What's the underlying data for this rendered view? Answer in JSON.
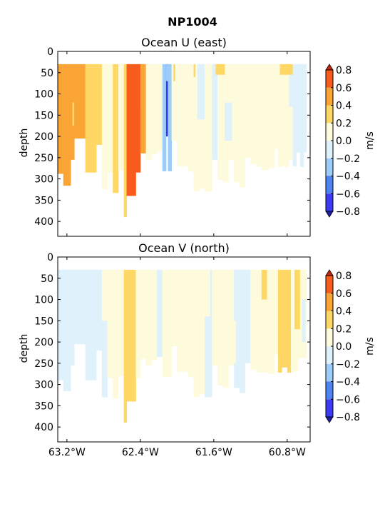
{
  "figure": {
    "title": "NP1004"
  },
  "colorbar": {
    "label": "m/s",
    "levels": [
      -0.8,
      -0.6,
      -0.4,
      -0.2,
      0.0,
      0.2,
      0.4,
      0.6,
      0.8
    ],
    "tick_labels": [
      "−0.8",
      "−0.6",
      "−0.4",
      "−0.2",
      "0.0",
      "0.2",
      "0.4",
      "0.6",
      "0.8"
    ],
    "colors": [
      "#3b3bf5",
      "#4c82f2",
      "#9ccdfa",
      "#dff1fb",
      "#fefbdd",
      "#fed765",
      "#f9a434",
      "#f75c1c"
    ],
    "under_color": "#1d1dab",
    "over_color": "#c2270b"
  },
  "chart_data": [
    {
      "type": "heatmap",
      "title": "Ocean U (east)",
      "xlabel": "",
      "ylabel": "depth",
      "xlim": [
        -63.3,
        -60.55
      ],
      "ylim": [
        435,
        0
      ],
      "yticks": [
        0,
        50,
        100,
        150,
        200,
        250,
        300,
        350,
        400
      ],
      "ytick_labels": [
        "0",
        "50",
        "100",
        "150",
        "200",
        "250",
        "300",
        "350",
        "400"
      ],
      "xticks": [
        -63.2,
        -62.4,
        -61.6,
        -60.8
      ],
      "xtick_labels": [
        "",
        "",
        "",
        ""
      ],
      "columns": [
        {
          "lon0": -63.3,
          "lon1": -63.24,
          "bottom": 288,
          "value": 0.45
        },
        {
          "lon0": -63.24,
          "lon1": -63.16,
          "bottom": 316,
          "value": 0.45
        },
        {
          "lon0": -63.16,
          "lon1": -63.12,
          "bottom": 255,
          "value": 0.45
        },
        {
          "lon0": -63.12,
          "lon1": -63.0,
          "bottom": 205,
          "value": 0.45
        },
        {
          "lon0": -63.0,
          "lon1": -62.88,
          "bottom": 285,
          "value": 0.3
        },
        {
          "lon0": -62.88,
          "lon1": -62.82,
          "bottom": 220,
          "value": 0.3
        },
        {
          "lon0": -62.82,
          "lon1": -62.76,
          "bottom": 325,
          "value": 0.1
        },
        {
          "lon0": -62.76,
          "lon1": -62.7,
          "bottom": 285,
          "value": 0.1
        },
        {
          "lon0": -62.7,
          "lon1": -62.64,
          "bottom": 333,
          "value": 0.3
        },
        {
          "lon0": -62.64,
          "lon1": -62.58,
          "bottom": 280,
          "value": 0.1
        },
        {
          "lon0": -62.58,
          "lon1": -62.55,
          "bottom": 390,
          "value": 0.3
        },
        {
          "lon0": -62.55,
          "lon1": -62.45,
          "bottom": 340,
          "value": 0.7
        },
        {
          "lon0": -62.45,
          "lon1": -62.4,
          "bottom": 285,
          "value": 0.7
        },
        {
          "lon0": -62.4,
          "lon1": -62.34,
          "bottom": 240,
          "value": 0.45
        },
        {
          "lon0": -62.34,
          "lon1": -62.28,
          "bottom": 255,
          "value": 0.1
        },
        {
          "lon0": -62.28,
          "lon1": -62.22,
          "bottom": 242,
          "value": 0.1
        },
        {
          "lon0": -62.22,
          "lon1": -62.16,
          "bottom": 235,
          "value": 0.1
        },
        {
          "lon0": -62.16,
          "lon1": -62.12,
          "bottom": 282,
          "value": -0.3
        },
        {
          "lon0": -62.12,
          "lon1": -62.1,
          "bottom": 200,
          "value": -0.7
        },
        {
          "lon0": -62.1,
          "lon1": -62.06,
          "bottom": 282,
          "value": -0.3
        },
        {
          "lon0": -62.06,
          "lon1": -62.0,
          "bottom": 210,
          "value": 0.1
        },
        {
          "lon0": -62.0,
          "lon1": -61.88,
          "bottom": 270,
          "value": 0.1
        },
        {
          "lon0": -61.88,
          "lon1": -61.82,
          "bottom": 283,
          "value": 0.1
        },
        {
          "lon0": -61.82,
          "lon1": -61.76,
          "bottom": 330,
          "value": 0.1
        },
        {
          "lon0": -61.76,
          "lon1": -61.7,
          "bottom": 323,
          "value": 0.1
        },
        {
          "lon0": -61.7,
          "lon1": -61.62,
          "bottom": 330,
          "value": 0.1
        },
        {
          "lon0": -61.62,
          "lon1": -61.56,
          "bottom": 255,
          "value": -0.1
        },
        {
          "lon0": -61.56,
          "lon1": -61.5,
          "bottom": 302,
          "value": 0.1
        },
        {
          "lon0": -61.5,
          "lon1": -61.44,
          "bottom": 308,
          "value": 0.1
        },
        {
          "lon0": -61.44,
          "lon1": -61.38,
          "bottom": 255,
          "value": 0.1
        },
        {
          "lon0": -61.38,
          "lon1": -61.32,
          "bottom": 308,
          "value": 0.1
        },
        {
          "lon0": -61.32,
          "lon1": -61.26,
          "bottom": 320,
          "value": 0.1
        },
        {
          "lon0": -61.26,
          "lon1": -61.2,
          "bottom": 250,
          "value": 0.1
        },
        {
          "lon0": -61.2,
          "lon1": -61.14,
          "bottom": 265,
          "value": 0.1
        },
        {
          "lon0": -61.14,
          "lon1": -61.08,
          "bottom": 272,
          "value": 0.1
        },
        {
          "lon0": -61.08,
          "lon1": -61.0,
          "bottom": 280,
          "value": 0.1
        },
        {
          "lon0": -61.0,
          "lon1": -60.94,
          "bottom": 275,
          "value": 0.1
        },
        {
          "lon0": -60.94,
          "lon1": -60.9,
          "bottom": 230,
          "value": 0.1
        },
        {
          "lon0": -60.9,
          "lon1": -60.86,
          "bottom": 272,
          "value": 0.1
        },
        {
          "lon0": -60.86,
          "lon1": -60.82,
          "bottom": 270,
          "value": 0.1
        },
        {
          "lon0": -60.82,
          "lon1": -60.78,
          "bottom": 272,
          "value": 0.1
        },
        {
          "lon0": -60.78,
          "lon1": -60.74,
          "bottom": 255,
          "value": 0.1
        },
        {
          "lon0": -60.74,
          "lon1": -60.7,
          "bottom": 270,
          "value": -0.1
        },
        {
          "lon0": -60.7,
          "lon1": -60.66,
          "bottom": 238,
          "value": -0.1
        },
        {
          "lon0": -60.66,
          "lon1": -60.62,
          "bottom": 272,
          "value": -0.1
        },
        {
          "lon0": -60.62,
          "lon1": -60.59,
          "bottom": 238,
          "value": -0.1
        }
      ],
      "patches": [
        {
          "lon0": -62.4,
          "lon1": -62.36,
          "top": 30,
          "bottom": 130,
          "value": 0.45
        },
        {
          "lon0": -63.14,
          "lon1": -63.12,
          "top": 120,
          "bottom": 175,
          "value": 0.3
        },
        {
          "lon0": -62.12,
          "lon1": -62.1,
          "top": 30,
          "bottom": 70,
          "value": -0.3
        },
        {
          "lon0": -62.04,
          "lon1": -62.02,
          "top": 30,
          "bottom": 70,
          "value": 0.3
        },
        {
          "lon0": -61.82,
          "lon1": -61.8,
          "top": 30,
          "bottom": 60,
          "value": 0.3
        },
        {
          "lon0": -61.78,
          "lon1": -61.7,
          "top": 30,
          "bottom": 160,
          "value": -0.1
        },
        {
          "lon0": -61.58,
          "lon1": -61.48,
          "top": 30,
          "bottom": 55,
          "value": 0.3
        },
        {
          "lon0": -61.48,
          "lon1": -61.4,
          "top": 120,
          "bottom": 210,
          "value": -0.1
        },
        {
          "lon0": -60.88,
          "lon1": -60.74,
          "top": 30,
          "bottom": 55,
          "value": 0.3
        },
        {
          "lon0": -60.78,
          "lon1": -60.74,
          "top": 55,
          "bottom": 130,
          "value": -0.1
        }
      ]
    },
    {
      "type": "heatmap",
      "title": "Ocean V (north)",
      "xlabel": "",
      "ylabel": "depth",
      "xlim": [
        -63.3,
        -60.55
      ],
      "ylim": [
        435,
        0
      ],
      "yticks": [
        0,
        50,
        100,
        150,
        200,
        250,
        300,
        350,
        400
      ],
      "ytick_labels": [
        "0",
        "50",
        "100",
        "150",
        "200",
        "250",
        "300",
        "350",
        "400"
      ],
      "xticks": [
        -63.2,
        -62.4,
        -61.6,
        -60.8
      ],
      "xtick_labels": [
        "63.2°W",
        "62.4°W",
        "61.6°W",
        "60.8°W"
      ],
      "columns": [
        {
          "lon0": -63.3,
          "lon1": -63.24,
          "bottom": 290,
          "value": -0.1
        },
        {
          "lon0": -63.24,
          "lon1": -63.16,
          "bottom": 316,
          "value": -0.1
        },
        {
          "lon0": -63.16,
          "lon1": -63.12,
          "bottom": 255,
          "value": -0.1
        },
        {
          "lon0": -63.12,
          "lon1": -63.0,
          "bottom": 205,
          "value": -0.1
        },
        {
          "lon0": -63.0,
          "lon1": -62.88,
          "bottom": 290,
          "value": -0.1
        },
        {
          "lon0": -62.88,
          "lon1": -62.82,
          "bottom": 220,
          "value": -0.1
        },
        {
          "lon0": -62.82,
          "lon1": -62.76,
          "bottom": 330,
          "value": -0.1
        },
        {
          "lon0": -62.76,
          "lon1": -62.7,
          "bottom": 285,
          "value": 0.1
        },
        {
          "lon0": -62.7,
          "lon1": -62.64,
          "bottom": 333,
          "value": 0.1
        },
        {
          "lon0": -62.64,
          "lon1": -62.58,
          "bottom": 280,
          "value": 0.1
        },
        {
          "lon0": -62.58,
          "lon1": -62.55,
          "bottom": 390,
          "value": 0.3
        },
        {
          "lon0": -62.55,
          "lon1": -62.45,
          "bottom": 340,
          "value": 0.3
        },
        {
          "lon0": -62.45,
          "lon1": -62.4,
          "bottom": 285,
          "value": 0.1
        },
        {
          "lon0": -62.4,
          "lon1": -62.34,
          "bottom": 240,
          "value": 0.1
        },
        {
          "lon0": -62.34,
          "lon1": -62.28,
          "bottom": 255,
          "value": 0.1
        },
        {
          "lon0": -62.28,
          "lon1": -62.22,
          "bottom": 242,
          "value": 0.1
        },
        {
          "lon0": -62.22,
          "lon1": -62.16,
          "bottom": 235,
          "value": -0.1
        },
        {
          "lon0": -62.16,
          "lon1": -62.1,
          "bottom": 282,
          "value": 0.1
        },
        {
          "lon0": -62.1,
          "lon1": -62.06,
          "bottom": 282,
          "value": 0.1
        },
        {
          "lon0": -62.06,
          "lon1": -62.0,
          "bottom": 210,
          "value": 0.1
        },
        {
          "lon0": -62.0,
          "lon1": -61.88,
          "bottom": 270,
          "value": 0.1
        },
        {
          "lon0": -61.88,
          "lon1": -61.82,
          "bottom": 283,
          "value": 0.1
        },
        {
          "lon0": -61.82,
          "lon1": -61.76,
          "bottom": 330,
          "value": 0.1
        },
        {
          "lon0": -61.76,
          "lon1": -61.7,
          "bottom": 323,
          "value": 0.1
        },
        {
          "lon0": -61.7,
          "lon1": -61.62,
          "bottom": 330,
          "value": -0.1
        },
        {
          "lon0": -61.62,
          "lon1": -61.56,
          "bottom": 255,
          "value": 0.1
        },
        {
          "lon0": -61.56,
          "lon1": -61.5,
          "bottom": 302,
          "value": 0.1
        },
        {
          "lon0": -61.5,
          "lon1": -61.44,
          "bottom": 308,
          "value": 0.1
        },
        {
          "lon0": -61.44,
          "lon1": -61.38,
          "bottom": 255,
          "value": 0.1
        },
        {
          "lon0": -61.38,
          "lon1": -61.32,
          "bottom": 308,
          "value": -0.1
        },
        {
          "lon0": -61.32,
          "lon1": -61.26,
          "bottom": 320,
          "value": -0.1
        },
        {
          "lon0": -61.26,
          "lon1": -61.2,
          "bottom": 250,
          "value": -0.1
        },
        {
          "lon0": -61.2,
          "lon1": -61.14,
          "bottom": 265,
          "value": 0.1
        },
        {
          "lon0": -61.14,
          "lon1": -61.08,
          "bottom": 272,
          "value": 0.1
        },
        {
          "lon0": -61.08,
          "lon1": -61.0,
          "bottom": 272,
          "value": 0.1
        },
        {
          "lon0": -61.0,
          "lon1": -60.94,
          "bottom": 275,
          "value": 0.1
        },
        {
          "lon0": -60.94,
          "lon1": -60.9,
          "bottom": 230,
          "value": 0.1
        },
        {
          "lon0": -60.9,
          "lon1": -60.86,
          "bottom": 272,
          "value": 0.3
        },
        {
          "lon0": -60.86,
          "lon1": -60.8,
          "bottom": 260,
          "value": 0.3
        },
        {
          "lon0": -60.8,
          "lon1": -60.76,
          "bottom": 272,
          "value": 0.3
        },
        {
          "lon0": -60.76,
          "lon1": -60.72,
          "bottom": 270,
          "value": 0.1
        },
        {
          "lon0": -60.72,
          "lon1": -60.68,
          "bottom": 270,
          "value": 0.1
        },
        {
          "lon0": -60.68,
          "lon1": -60.64,
          "bottom": 238,
          "value": 0.1
        },
        {
          "lon0": -60.64,
          "lon1": -60.59,
          "bottom": 238,
          "value": 0.1
        }
      ],
      "patches": [
        {
          "lon0": -62.82,
          "lon1": -62.76,
          "top": 30,
          "bottom": 150,
          "value": 0.1
        },
        {
          "lon0": -62.4,
          "lon1": -62.36,
          "top": 30,
          "bottom": 90,
          "value": 0.1
        },
        {
          "lon0": -62.04,
          "lon1": -61.98,
          "top": 30,
          "bottom": 120,
          "value": 0.1
        },
        {
          "lon0": -61.7,
          "lon1": -61.64,
          "top": 30,
          "bottom": 140,
          "value": 0.1
        },
        {
          "lon0": -61.42,
          "lon1": -61.36,
          "top": 150,
          "bottom": 250,
          "value": 0.1
        },
        {
          "lon0": -61.08,
          "lon1": -61.02,
          "top": 30,
          "bottom": 100,
          "value": 0.3
        },
        {
          "lon0": -60.72,
          "lon1": -60.66,
          "top": 30,
          "bottom": 170,
          "value": 0.3
        },
        {
          "lon0": -60.64,
          "lon1": -60.6,
          "top": 100,
          "bottom": 200,
          "value": -0.1
        }
      ]
    }
  ]
}
